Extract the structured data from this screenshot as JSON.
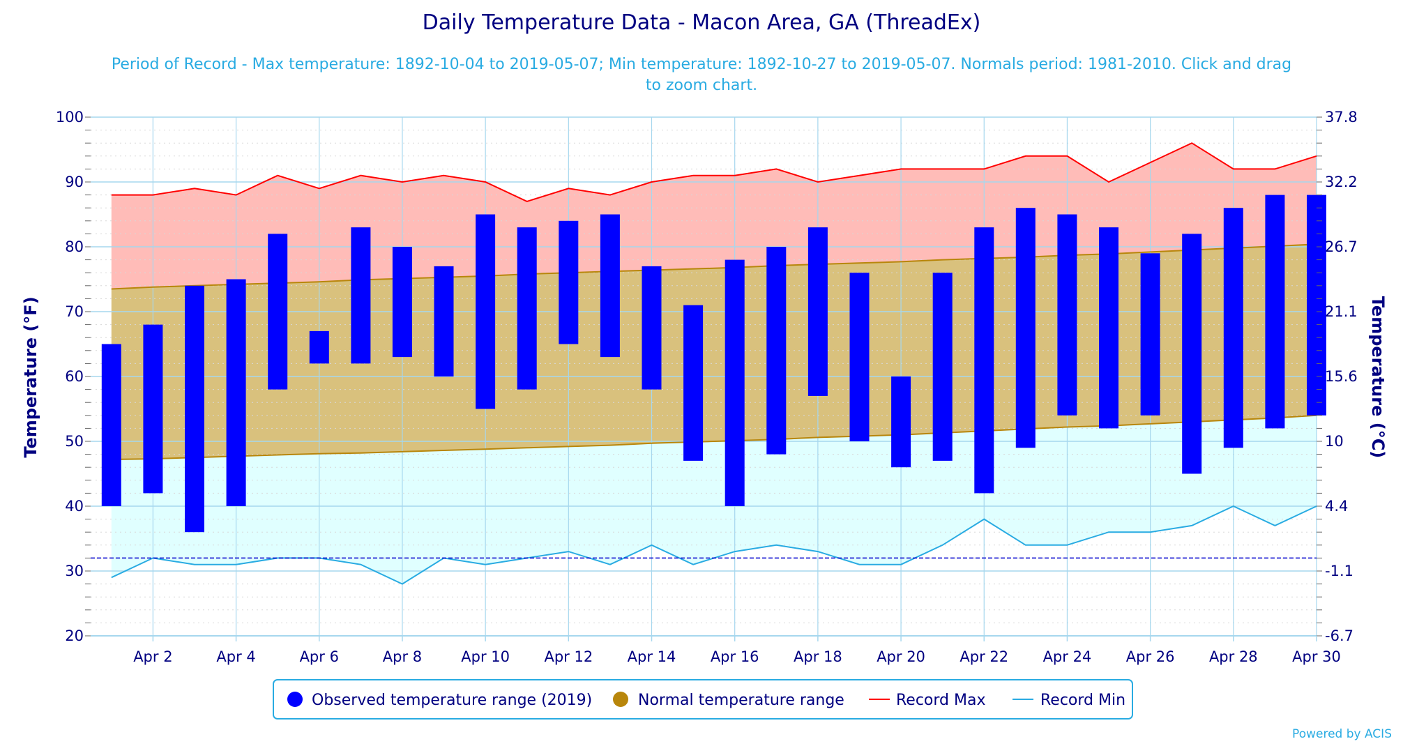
{
  "chart_data": {
    "type": "bar",
    "title": "Daily Temperature Data - Macon Area, GA (ThreadEx)",
    "subtitle_line1": "Period of Record - Max temperature: 1892-10-04 to 2019-05-07; Min temperature: 1892-10-27 to 2019-05-07. Normals period: 1981-2010. Click and drag",
    "subtitle_line2": "to zoom chart.",
    "ylabel_left": "Temperature (°F)",
    "ylabel_right": "Temperature (°C)",
    "ylim": [
      20,
      100
    ],
    "x_range": [
      0.5,
      30
    ],
    "left_ticks": [
      20,
      30,
      40,
      50,
      60,
      70,
      80,
      90,
      100
    ],
    "right_ticks": [
      "-6.7",
      "-1.1",
      "4.4",
      "10",
      "15.6",
      "21.1",
      "26.7",
      "32.2",
      "37.8"
    ],
    "x_ticks": [
      {
        "day": 2,
        "label": "Apr 2"
      },
      {
        "day": 4,
        "label": "Apr 4"
      },
      {
        "day": 6,
        "label": "Apr 6"
      },
      {
        "day": 8,
        "label": "Apr 8"
      },
      {
        "day": 10,
        "label": "Apr 10"
      },
      {
        "day": 12,
        "label": "Apr 12"
      },
      {
        "day": 14,
        "label": "Apr 14"
      },
      {
        "day": 16,
        "label": "Apr 16"
      },
      {
        "day": 18,
        "label": "Apr 18"
      },
      {
        "day": 20,
        "label": "Apr 20"
      },
      {
        "day": 22,
        "label": "Apr 22"
      },
      {
        "day": 24,
        "label": "Apr 24"
      },
      {
        "day": 26,
        "label": "Apr 26"
      },
      {
        "day": 28,
        "label": "Apr 28"
      },
      {
        "day": 30,
        "label": "Apr 30"
      }
    ],
    "freezing_line": 32,
    "days": [
      1,
      2,
      3,
      4,
      5,
      6,
      7,
      8,
      9,
      10,
      11,
      12,
      13,
      14,
      15,
      16,
      17,
      18,
      19,
      20,
      21,
      22,
      23,
      24,
      25,
      26,
      27,
      28,
      29,
      30
    ],
    "series": [
      {
        "name": "Observed temperature range (2019)",
        "low": [
          40,
          42,
          36,
          40,
          58,
          62,
          62,
          63,
          60,
          55,
          58,
          65,
          63,
          58,
          47,
          40,
          48,
          57,
          50,
          46,
          47,
          42,
          49,
          54,
          52,
          54,
          45,
          49,
          52,
          54
        ],
        "high": [
          65,
          68,
          74,
          75,
          82,
          67,
          83,
          80,
          77,
          85,
          83,
          84,
          85,
          77,
          71,
          78,
          80,
          83,
          76,
          60,
          76,
          83,
          86,
          85,
          83,
          79,
          82,
          86,
          88,
          88
        ]
      },
      {
        "name": "Normal temperature range",
        "low": [
          47.2,
          47.3,
          47.5,
          47.7,
          47.9,
          48.1,
          48.2,
          48.4,
          48.6,
          48.8,
          49.0,
          49.2,
          49.4,
          49.7,
          49.9,
          50.1,
          50.3,
          50.6,
          50.8,
          51.0,
          51.3,
          51.6,
          51.9,
          52.2,
          52.4,
          52.7,
          53.0,
          53.3,
          53.6,
          54.0
        ],
        "high": [
          73.5,
          73.8,
          74.0,
          74.2,
          74.4,
          74.6,
          74.9,
          75.1,
          75.3,
          75.5,
          75.8,
          76.0,
          76.2,
          76.4,
          76.6,
          76.8,
          77.1,
          77.3,
          77.5,
          77.7,
          78.0,
          78.2,
          78.4,
          78.7,
          78.9,
          79.2,
          79.5,
          79.8,
          80.1,
          80.4
        ]
      },
      {
        "name": "Record Max",
        "values": [
          88,
          88,
          89,
          88,
          91,
          89,
          91,
          90,
          91,
          90,
          87,
          89,
          88,
          90,
          91,
          91,
          92,
          90,
          91,
          92,
          92,
          92,
          94,
          94,
          90,
          93,
          96,
          92,
          92,
          94
        ]
      },
      {
        "name": "Record Min",
        "values": [
          29,
          32,
          31,
          31,
          32,
          32,
          31,
          28,
          32,
          31,
          32,
          33,
          31,
          34,
          31,
          33,
          34,
          33,
          31,
          31,
          34,
          38,
          34,
          34,
          36,
          36,
          37,
          40,
          37,
          40
        ]
      }
    ],
    "grid": true,
    "legend_position": "bottom",
    "credit": "Powered by ACIS",
    "colors": {
      "observed": "#0000ff",
      "normal_fill": "#d9c17d",
      "normal_line": "#b8860b",
      "normal_legend": "#b8860b",
      "record_max_line": "#ff0000",
      "record_max_fill": "#ffbcb8",
      "record_min_line": "#29abe2",
      "record_min_fill": "#e0ffff",
      "freezing": "#0000cd",
      "grid": "#a6d7ee",
      "axis_text": "#000080"
    }
  }
}
